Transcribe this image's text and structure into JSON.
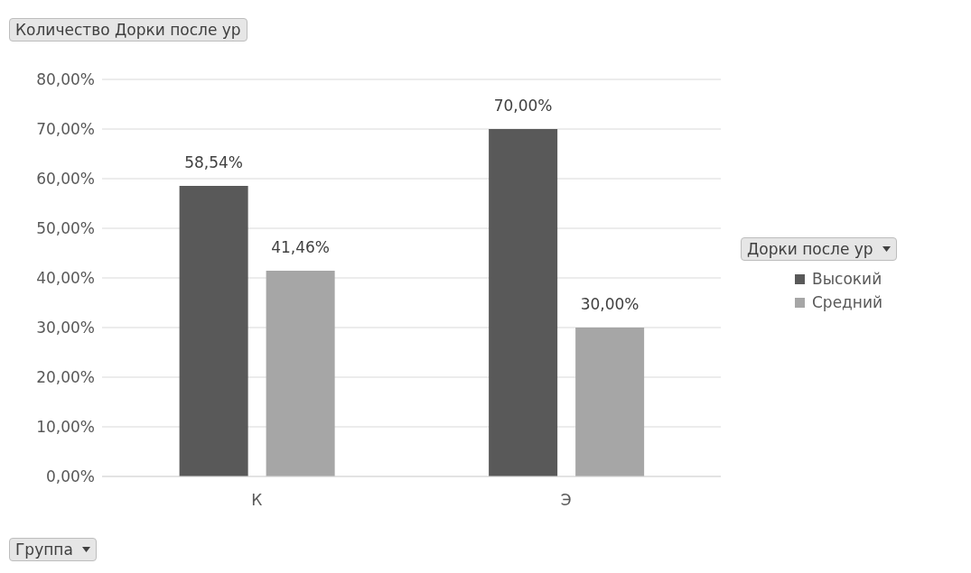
{
  "chart_data": {
    "type": "bar",
    "title": "Количество Дорки после ур",
    "xlabel": "Группа",
    "legend_title": "Дорки после ур",
    "categories": [
      "К",
      "Э"
    ],
    "series": [
      {
        "name": "Высокий",
        "color": "#595959",
        "values": [
          58.54,
          70.0
        ],
        "value_labels": [
          "58,54%",
          "70,00%"
        ]
      },
      {
        "name": "Средний",
        "color": "#a6a6a6",
        "values": [
          41.46,
          30.0
        ],
        "value_labels": [
          "41,46%",
          "30,00%"
        ]
      }
    ],
    "ylim": [
      0,
      80
    ],
    "yticks": [
      {
        "value": 0,
        "label": "0,00%"
      },
      {
        "value": 10,
        "label": "10,00%"
      },
      {
        "value": 20,
        "label": "20,00%"
      },
      {
        "value": 30,
        "label": "30,00%"
      },
      {
        "value": 40,
        "label": "40,00%"
      },
      {
        "value": 50,
        "label": "50,00%"
      },
      {
        "value": 60,
        "label": "60,00%"
      },
      {
        "value": 70,
        "label": "70,00%"
      },
      {
        "value": 80,
        "label": "80,00%"
      }
    ],
    "grid": "y",
    "legend": "right"
  }
}
